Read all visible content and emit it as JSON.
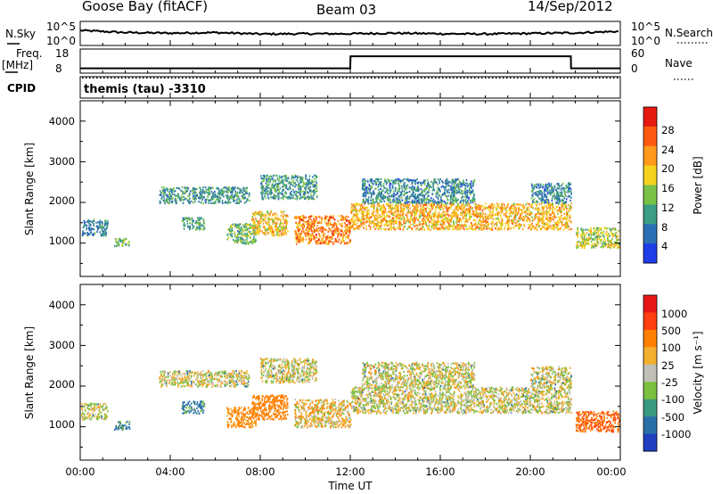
{
  "header": {
    "station": "Goose Bay (fitACF)",
    "beam": "Beam 03",
    "date": "14/Sep/2012"
  },
  "noise_panel": {
    "left_label": "N.Sky",
    "left_ticks": [
      "10^5",
      "10^0"
    ],
    "right_label": "N.Search",
    "right_ticks": [
      "10^5",
      "10^0"
    ]
  },
  "freq_panel": {
    "left_label_1": "Freq.",
    "left_label_2": "[MHz]",
    "left_ticks": [
      "18",
      "8"
    ],
    "right_label": "Nave",
    "right_ticks": [
      "60",
      "0"
    ]
  },
  "cpid_panel": {
    "label": "CPID",
    "text": "themis (tau) -3310"
  },
  "axes": {
    "ylabel": "Slant Range [km]",
    "y_ticks": [
      "1000",
      "2000",
      "3000",
      "4000"
    ],
    "x_ticks": [
      "00:00",
      "04:00",
      "08:00",
      "12:00",
      "16:00",
      "20:00",
      "00:00"
    ],
    "xlabel": "Time UT"
  },
  "colorbars": {
    "power": {
      "label": "Power [dB]",
      "ticks": [
        "4",
        "8",
        "12",
        "16",
        "20",
        "24",
        "28"
      ],
      "colors": [
        "#1f3de8",
        "#2d6fb5",
        "#3c9e82",
        "#79c247",
        "#f4d21e",
        "#ff9a1a",
        "#ff5a10",
        "#e61a10"
      ]
    },
    "velocity": {
      "label": "Velocity [m s⁻¹]",
      "ticks": [
        "1000",
        "500",
        "100",
        "25",
        "-25",
        "-100",
        "-500",
        "-1000"
      ],
      "colors": [
        "#2040c0",
        "#2a70a8",
        "#3a9a80",
        "#7cc040",
        "#c0c0b8",
        "#f2b030",
        "#ff8000",
        "#ff4010",
        "#e81818"
      ]
    }
  },
  "chart_data": [
    {
      "type": "line",
      "title": "N.Sky / N.Search",
      "x": [
        0,
        2,
        4,
        6,
        8,
        10,
        12,
        14,
        16,
        18,
        20,
        22,
        24
      ],
      "series": [
        {
          "name": "N.Sky",
          "values": [
            5.0,
            4.3,
            4.1,
            4.3,
            3.8,
            3.9,
            3.9,
            4.1,
            3.9,
            3.8,
            4.0,
            4.2,
            4.7
          ]
        }
      ],
      "xlim": [
        0,
        24
      ],
      "ylim": [
        0,
        8
      ]
    },
    {
      "type": "line",
      "title": "Freq. / Nave",
      "x": [
        0,
        12.0,
        12.01,
        21.8,
        21.81,
        24
      ],
      "series": [
        {
          "name": "Freq.",
          "values": [
            10,
            10,
            15,
            15,
            10,
            10
          ]
        },
        {
          "name": "Nave",
          "values": [
            6,
            6,
            6,
            6,
            6,
            6
          ]
        }
      ],
      "xlim": [
        0,
        24
      ],
      "ylim": [
        8,
        18
      ]
    },
    {
      "type": "heatmap",
      "title": "Power [dB]",
      "xlabel": "Time UT",
      "ylabel": "Slant Range [km]",
      "xlim": [
        0,
        24
      ],
      "ylim": [
        180,
        4500
      ],
      "clim": [
        0,
        30
      ],
      "regions": [
        {
          "x_range": [
            0.0,
            1.2
          ],
          "y_range": [
            1200,
            1600
          ],
          "value": 7
        },
        {
          "x_range": [
            1.5,
            2.2
          ],
          "y_range": [
            950,
            1150
          ],
          "value": 13
        },
        {
          "x_range": [
            3.5,
            7.5
          ],
          "y_range": [
            2000,
            2400
          ],
          "value": 9
        },
        {
          "x_range": [
            4.5,
            5.5
          ],
          "y_range": [
            1350,
            1650
          ],
          "value": 10
        },
        {
          "x_range": [
            6.5,
            7.8
          ],
          "y_range": [
            1000,
            1500
          ],
          "value": 12
        },
        {
          "x_range": [
            7.6,
            9.2
          ],
          "y_range": [
            1200,
            1800
          ],
          "value": 18
        },
        {
          "x_range": [
            8.0,
            10.5
          ],
          "y_range": [
            2100,
            2700
          ],
          "value": 9
        },
        {
          "x_range": [
            9.5,
            12.0
          ],
          "y_range": [
            1000,
            1700
          ],
          "value": 22
        },
        {
          "x_range": [
            12.0,
            21.8
          ],
          "y_range": [
            1350,
            2000
          ],
          "value": 19
        },
        {
          "x_range": [
            12.5,
            17.5
          ],
          "y_range": [
            2000,
            2600
          ],
          "value": 8
        },
        {
          "x_range": [
            20.0,
            21.8
          ],
          "y_range": [
            2000,
            2500
          ],
          "value": 8
        },
        {
          "x_range": [
            22.0,
            24.0
          ],
          "y_range": [
            900,
            1400
          ],
          "value": 15
        }
      ]
    },
    {
      "type": "heatmap",
      "title": "Velocity [m s⁻¹]",
      "xlabel": "Time UT",
      "ylabel": "Slant Range [km]",
      "xlim": [
        0,
        24
      ],
      "ylim": [
        180,
        4500
      ],
      "clim": [
        -1000,
        1000
      ],
      "regions": [
        {
          "x_range": [
            0.0,
            1.2
          ],
          "y_range": [
            1200,
            1600
          ],
          "value": 0
        },
        {
          "x_range": [
            1.5,
            2.2
          ],
          "y_range": [
            950,
            1150
          ],
          "value": 150
        },
        {
          "x_range": [
            3.5,
            7.5
          ],
          "y_range": [
            2000,
            2400
          ],
          "value": 0
        },
        {
          "x_range": [
            4.5,
            5.5
          ],
          "y_range": [
            1350,
            1650
          ],
          "value": 150
        },
        {
          "x_range": [
            6.5,
            7.8
          ],
          "y_range": [
            1000,
            1500
          ],
          "value": -150
        },
        {
          "x_range": [
            7.6,
            9.2
          ],
          "y_range": [
            1200,
            1800
          ],
          "value": -300
        },
        {
          "x_range": [
            8.0,
            10.5
          ],
          "y_range": [
            2100,
            2700
          ],
          "value": 0
        },
        {
          "x_range": [
            9.5,
            12.0
          ],
          "y_range": [
            1000,
            1700
          ],
          "value": -50
        },
        {
          "x_range": [
            12.0,
            21.8
          ],
          "y_range": [
            1350,
            2000
          ],
          "value": 0
        },
        {
          "x_range": [
            12.5,
            17.5
          ],
          "y_range": [
            2000,
            2600
          ],
          "value": 0
        },
        {
          "x_range": [
            20.0,
            21.8
          ],
          "y_range": [
            2000,
            2500
          ],
          "value": 0
        },
        {
          "x_range": [
            22.0,
            24.0
          ],
          "y_range": [
            900,
            1400
          ],
          "value": -500
        }
      ]
    }
  ]
}
